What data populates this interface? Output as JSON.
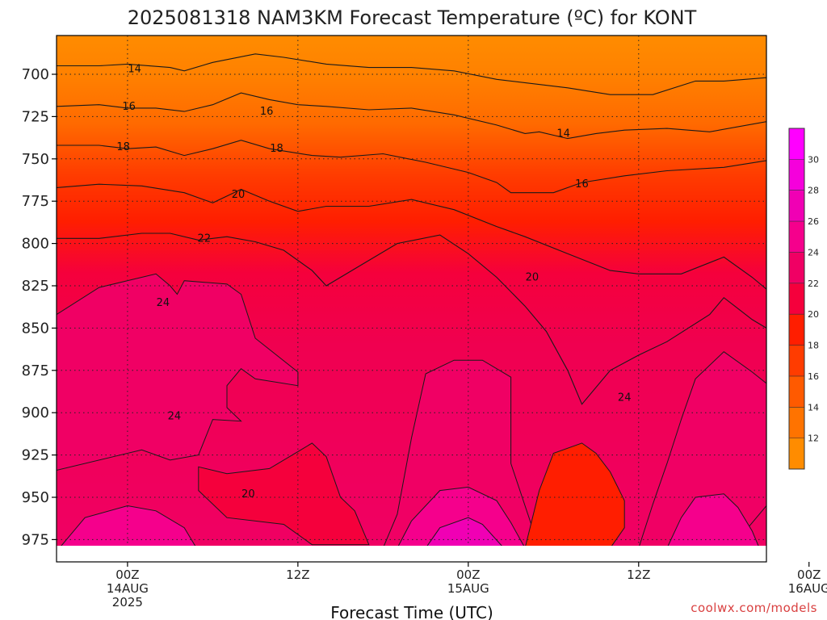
{
  "chart_data": {
    "type": "heatmap",
    "title": "2025081318 NAM3KM Forecast Temperature (ºC) for KONT",
    "xlabel": "Forecast Time (UTC)",
    "ylabel": "",
    "y_ticks": [
      "700",
      "725",
      "750",
      "775",
      "800",
      "825",
      "850",
      "875",
      "900",
      "925",
      "950",
      "975"
    ],
    "x_ticks": [
      {
        "lines": [
          "00Z",
          "14AUG",
          "2025"
        ]
      },
      {
        "lines": [
          "12Z"
        ]
      },
      {
        "lines": [
          "00Z",
          "15AUG"
        ]
      },
      {
        "lines": [
          "12Z"
        ]
      },
      {
        "lines": [
          "00Z",
          "16AUG"
        ]
      }
    ],
    "colorbar": {
      "labels": [
        "12",
        "14",
        "16",
        "18",
        "20",
        "22",
        "24",
        "26",
        "28",
        "30"
      ],
      "colors": [
        "#ff8c00",
        "#ff7300",
        "#ff5a00",
        "#ff3c00",
        "#ff1e00",
        "#f5003c",
        "#f00064",
        "#f5008c",
        "#f000b4",
        "#f500dc",
        "#ff00ff"
      ]
    },
    "contour_labels": [
      {
        "text": "14",
        "t": 0.5,
        "p": 697
      },
      {
        "text": "16",
        "t": 0.1,
        "p": 719
      },
      {
        "text": "18",
        "t": -0.3,
        "p": 743
      },
      {
        "text": "16",
        "t": 9.8,
        "p": 722
      },
      {
        "text": "18",
        "t": 10.5,
        "p": 744
      },
      {
        "text": "20",
        "t": 7.8,
        "p": 771
      },
      {
        "text": "22",
        "t": 5.4,
        "p": 797
      },
      {
        "text": "24",
        "t": 2.5,
        "p": 835
      },
      {
        "text": "24",
        "t": 3.3,
        "p": 902
      },
      {
        "text": "20",
        "t": 8.5,
        "p": 948
      },
      {
        "text": "14",
        "t": 30.7,
        "p": 735
      },
      {
        "text": "16",
        "t": 32.0,
        "p": 765
      },
      {
        "text": "20",
        "t": 28.5,
        "p": 820
      },
      {
        "text": "24",
        "t": 35.0,
        "p": 891
      }
    ],
    "credit": "coolwx.com/models"
  }
}
